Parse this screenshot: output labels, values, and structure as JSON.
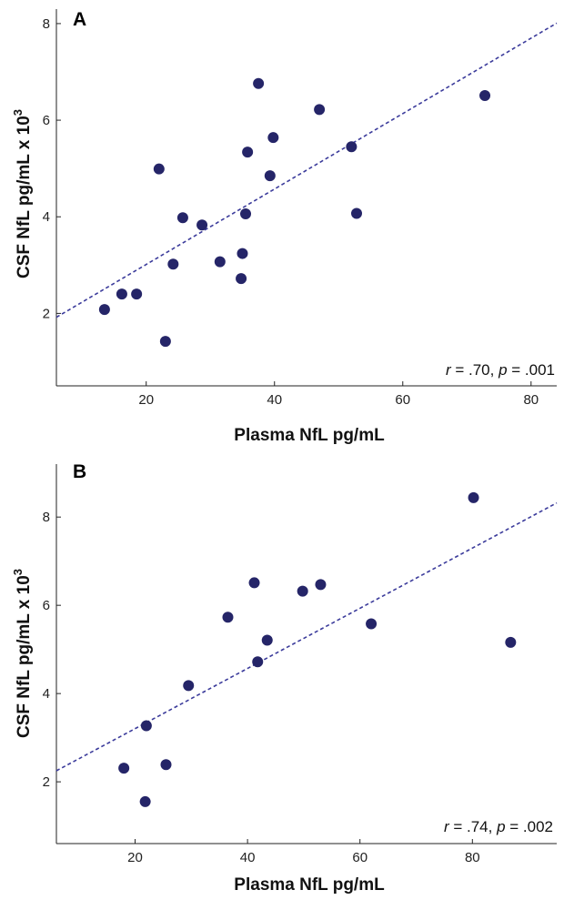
{
  "colors": {
    "point": "#252568",
    "fit_line": "#3b3b9b",
    "axis": "#222222"
  },
  "chart_data": [
    {
      "type": "scatter",
      "panel_label": "A",
      "xlabel": "Plasma NfL pg/mL",
      "ylabel_main": "CSF NfL pg/mL x 10",
      "ylabel_sup": "3",
      "xlim": [
        6,
        84
      ],
      "ylim": [
        0.5,
        8.3
      ],
      "xticks": [
        20,
        40,
        60,
        80
      ],
      "yticks": [
        2,
        4,
        6,
        8
      ],
      "grid": false,
      "stats": {
        "r_symbol": "r",
        "r_value": " = .70, ",
        "p_symbol": "p",
        "p_value": " = .001"
      },
      "points": [
        {
          "x": 13.5,
          "y": 2.08
        },
        {
          "x": 16.2,
          "y": 2.4
        },
        {
          "x": 18.5,
          "y": 2.4
        },
        {
          "x": 22.0,
          "y": 4.99
        },
        {
          "x": 23.0,
          "y": 1.42
        },
        {
          "x": 24.2,
          "y": 3.02
        },
        {
          "x": 25.7,
          "y": 3.98
        },
        {
          "x": 28.7,
          "y": 3.83
        },
        {
          "x": 31.5,
          "y": 3.07
        },
        {
          "x": 34.8,
          "y": 2.72
        },
        {
          "x": 35.0,
          "y": 3.24
        },
        {
          "x": 35.5,
          "y": 4.06
        },
        {
          "x": 35.8,
          "y": 5.34
        },
        {
          "x": 37.5,
          "y": 6.76
        },
        {
          "x": 39.3,
          "y": 4.85
        },
        {
          "x": 39.8,
          "y": 5.64
        },
        {
          "x": 47.0,
          "y": 6.22
        },
        {
          "x": 52.0,
          "y": 5.45
        },
        {
          "x": 52.8,
          "y": 4.07
        },
        {
          "x": 72.8,
          "y": 6.51
        }
      ],
      "fit_line": [
        {
          "x": 6,
          "y": 1.92
        },
        {
          "x": 84,
          "y": 8.01
        }
      ]
    },
    {
      "type": "scatter",
      "panel_label": "B",
      "xlabel": "Plasma NfL pg/mL",
      "ylabel_main": "CSF NfL pg/mL x 10",
      "ylabel_sup": "3",
      "xlim": [
        6,
        95
      ],
      "ylim": [
        0.6,
        9.2
      ],
      "xticks": [
        20,
        40,
        60,
        80
      ],
      "yticks": [
        2,
        4,
        6,
        8
      ],
      "grid": false,
      "stats": {
        "r_symbol": "r",
        "r_value": " = .74, ",
        "p_symbol": "p",
        "p_value": " = .002"
      },
      "points": [
        {
          "x": 18.0,
          "y": 2.31
        },
        {
          "x": 21.8,
          "y": 1.55
        },
        {
          "x": 22.0,
          "y": 3.27
        },
        {
          "x": 25.5,
          "y": 2.39
        },
        {
          "x": 29.5,
          "y": 4.18
        },
        {
          "x": 36.5,
          "y": 5.73
        },
        {
          "x": 41.2,
          "y": 6.51
        },
        {
          "x": 41.8,
          "y": 4.72
        },
        {
          "x": 43.5,
          "y": 5.21
        },
        {
          "x": 49.8,
          "y": 6.32
        },
        {
          "x": 53.0,
          "y": 6.47
        },
        {
          "x": 62.0,
          "y": 5.58
        },
        {
          "x": 80.2,
          "y": 8.44
        },
        {
          "x": 86.8,
          "y": 5.16
        }
      ],
      "fit_line": [
        {
          "x": 6,
          "y": 2.25
        },
        {
          "x": 95,
          "y": 8.32
        }
      ]
    }
  ]
}
